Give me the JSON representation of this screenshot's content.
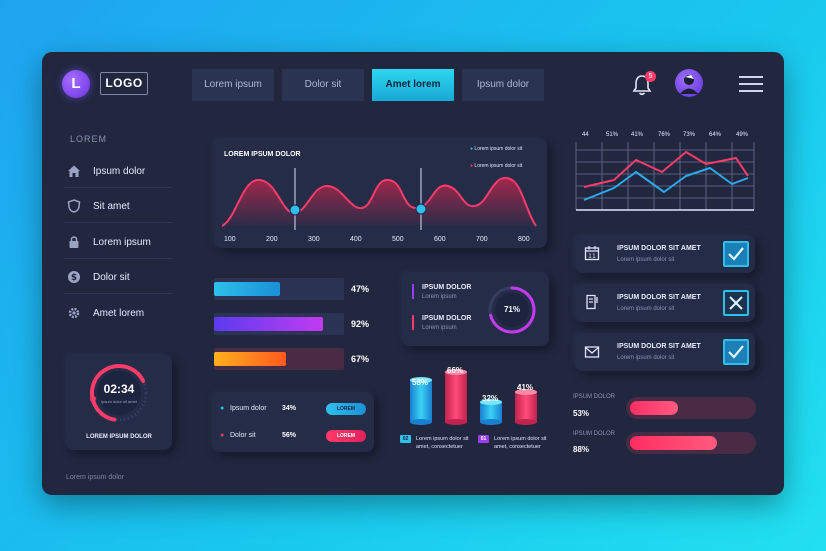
{
  "header": {
    "logo_letter": "L",
    "logo_text": "LOGO",
    "tabs": [
      {
        "label": "Lorem ipsum",
        "active": false
      },
      {
        "label": "Dolor sit",
        "active": false
      },
      {
        "label": "Amet lorem",
        "active": true
      },
      {
        "label": "Ipsum dolor",
        "active": false
      }
    ],
    "notification_count": "5"
  },
  "sidebar": {
    "section": "LOREM",
    "items": [
      {
        "label": "Ipsum dolor",
        "icon": "home-icon"
      },
      {
        "label": "Sit amet",
        "icon": "shield-icon"
      },
      {
        "label": "Lorem ipsum",
        "icon": "lock-icon"
      },
      {
        "label": "Dolor sit",
        "icon": "dollar-icon"
      },
      {
        "label": "Amet lorem",
        "icon": "gear-icon"
      }
    ],
    "clock": {
      "time": "02:34",
      "subtitle": "Ipsum dolor sit amet",
      "label": "LOREM IPSUM DOLOR"
    },
    "footer": "Lorem ipsum dolor"
  },
  "wave_chart": {
    "title": "LOREM IPSUM DOLOR",
    "legend": [
      "Lorem ipsum dolor sit",
      "Lorem ipsum dolor sit"
    ],
    "x_ticks": [
      "100",
      "200",
      "300",
      "400",
      "500",
      "600",
      "700",
      "800"
    ]
  },
  "progress_bars": [
    {
      "label": "47%",
      "value": 47,
      "color": "#20c4ee"
    },
    {
      "label": "92%",
      "value": 92,
      "color": "#9a3bf2"
    },
    {
      "label": "67%",
      "value": 67,
      "color": "#ff8a1e"
    }
  ],
  "ring_card": {
    "items": [
      {
        "title": "IPSUM DOLOR",
        "sub": "Lorem ipsum",
        "color": "#9a3bf2"
      },
      {
        "title": "IPSUM DOLOR",
        "sub": "Lorem ipsum",
        "color": "#ff3b6a"
      }
    ],
    "value": "71%"
  },
  "list_card": {
    "rows": [
      {
        "label": "Ipsum dolor",
        "pct": "34%",
        "button": "LOREM",
        "color": "#2ec0ea"
      },
      {
        "label": "Dolor sit",
        "pct": "56%",
        "button": "LOREM",
        "color": "#ff3b6a"
      }
    ]
  },
  "cylinder_chart": {
    "labels": [
      "58%",
      "66%",
      "32%",
      "41%"
    ],
    "legend": [
      {
        "tag": "02",
        "text": "Lorem ipsum dolor sit",
        "text2": "amet, consectetuer"
      },
      {
        "tag": "01",
        "text": "Lorem ipsum dolor sit",
        "text2": "amet, consectetuer"
      }
    ]
  },
  "line_chart": {
    "top_labels": [
      "44",
      "51%",
      "41%",
      "76%",
      "73%",
      "64%",
      "49%"
    ]
  },
  "check_cards": [
    {
      "title": "IPSUM DOLOR SIT AMET",
      "sub": "Lorem ipsum dolor sit",
      "state": "checked",
      "icon": "calendar-icon"
    },
    {
      "title": "IPSUM DOLOR SIT AMET",
      "sub": "Lorem ipsum dolor sit",
      "state": "crossed",
      "icon": "document-icon"
    },
    {
      "title": "IPSUM DOLOR SIT AMET",
      "sub": "Lorem ipsum dolor sit",
      "state": "checked",
      "icon": "mail-icon"
    }
  ],
  "bottom_bars": [
    {
      "label": "IPSUM DOLOR",
      "pct": "53%",
      "value": 53
    },
    {
      "label": "IPSUM DOLOR",
      "pct": "88%",
      "value": 88
    }
  ]
}
